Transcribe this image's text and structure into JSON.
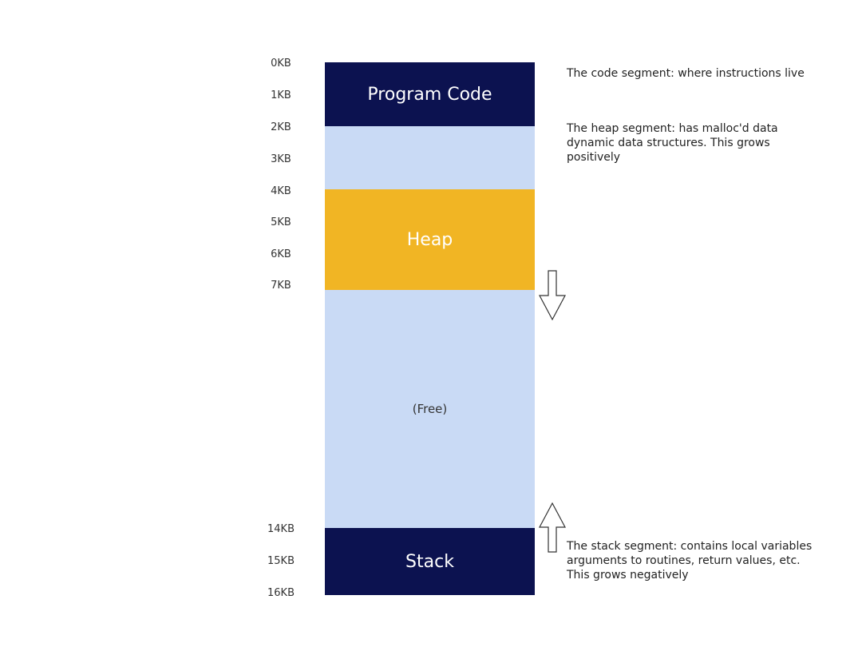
{
  "diagram": {
    "ticks": [
      "0KB",
      "1KB",
      "2KB",
      "3KB",
      "4KB",
      "5KB",
      "6KB",
      "7KB",
      "14KB",
      "15KB",
      "16KB"
    ],
    "segments": {
      "code": "Program Code",
      "heap": "Heap",
      "free": "(Free)",
      "stack": "Stack"
    },
    "notes": {
      "code": [
        "The code segment: where instructions live"
      ],
      "heap": [
        "The heap segment: has malloc'd data",
        "dynamic data structures. This grows",
        "positively"
      ],
      "stack": [
        "The stack segment: contains local variables",
        "arguments to routines, return values, etc.",
        "This grows negatively"
      ]
    },
    "arrows": {
      "heap_growth": "down-arrow",
      "stack_growth": "up-arrow"
    },
    "colors": {
      "code_stack": "#0c1250",
      "heap": "#f1b524",
      "free": "#c9daf5"
    }
  }
}
